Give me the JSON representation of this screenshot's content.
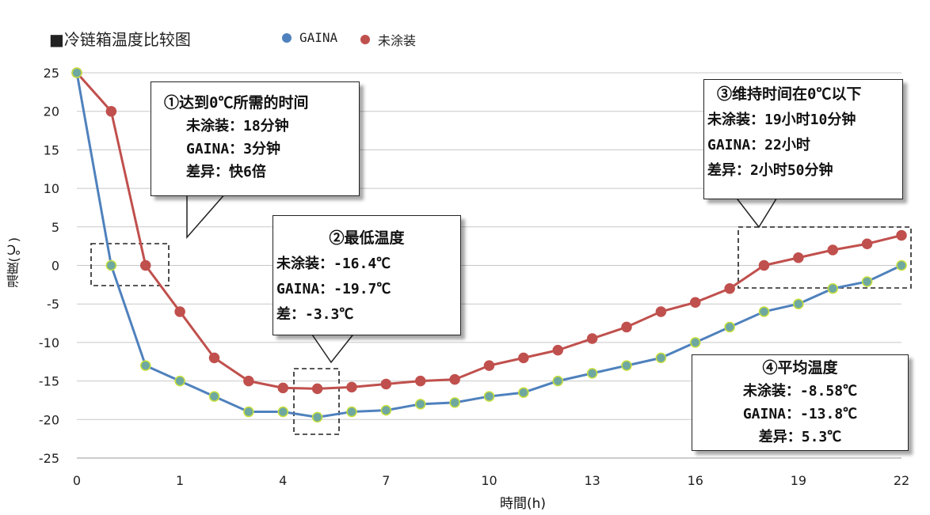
{
  "title": "■冷链箱温度比较图",
  "legend": {
    "gaina": "GAINA",
    "uncoated": "未涂装"
  },
  "colors": {
    "gaina_line": "#4f81bd",
    "uncoated_line": "#c0504d",
    "gaina_marker_fill": "#6fa8a0",
    "gaina_marker_stroke": "#c8e03c"
  },
  "callouts": {
    "c1": {
      "head": "①达到0℃所需的时间",
      "l1": "未涂装：18分钟",
      "l2": "GAINA：3分钟",
      "l3": "差异：快6倍"
    },
    "c2": {
      "head": "②最低温度",
      "l1": "未涂装：-16.4℃",
      "l2": "GAINA：-19.7℃",
      "l3": "差：-3.3℃"
    },
    "c3": {
      "head": "③维持时间在0℃以下",
      "l1": "未涂装：19小时10分钟",
      "l2": "GAINA：22小时",
      "l3": "差异：2小时50分钟"
    },
    "c4": {
      "head": "④平均温度",
      "l1": "未涂装：-8.58℃",
      "l2": "GAINA：-13.8℃",
      "l3": "差异：5.3℃"
    }
  },
  "chart_data": {
    "type": "line",
    "xlabel": "時間(h)",
    "ylabel": "温度(℃)",
    "ylim": [
      -25,
      25
    ],
    "yticks": [
      25,
      20,
      15,
      10,
      5,
      0,
      -5,
      -10,
      -15,
      -20,
      -25
    ],
    "x_tick_labels": [
      "0",
      "",
      "",
      "1",
      "",
      "",
      "4",
      "",
      "",
      "7",
      "",
      "",
      "10",
      "",
      "",
      "13",
      "",
      "",
      "16",
      "",
      "",
      "19",
      "",
      "",
      "22"
    ],
    "grid": true,
    "legend_position": "top",
    "series": [
      {
        "name": "GAINA",
        "values": [
          25,
          0,
          -13,
          -15,
          -17,
          -19,
          -19,
          -19.7,
          -19,
          -18.8,
          -18,
          -17.8,
          -17,
          -16.5,
          -15,
          -14,
          -13,
          -12,
          -10,
          -8,
          -6,
          -5,
          -3,
          -2.1,
          0
        ]
      },
      {
        "name": "未涂装",
        "values": [
          25,
          20,
          0,
          -6,
          -12,
          -15,
          -15.9,
          -16,
          -15.8,
          -15.4,
          -15,
          -14.8,
          -13,
          -12,
          -11,
          -9.5,
          -8,
          -6,
          -4.8,
          -3,
          0,
          1,
          2,
          2.8,
          3.9
        ]
      }
    ]
  }
}
